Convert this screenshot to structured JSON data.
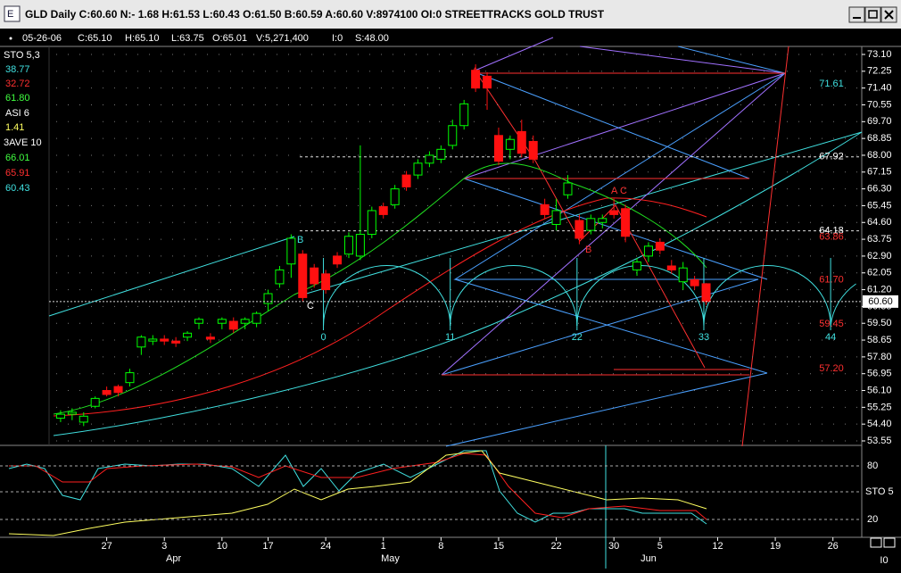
{
  "window": {
    "title": "GLD Daily C:60.60 N:- 1.68 H:61.53 L:60.43 O:61.50 B:60.59 A:60.60 V:8974100 OI:0 STREETTRACKS GOLD TRUST"
  },
  "info": [
    "05-26-06",
    "C:65.10",
    "H:65.10",
    "L:63.75",
    "O:65.01",
    "V:5,271,400",
    "I:0",
    "S:48.00"
  ],
  "sidebar": [
    {
      "text": "STO 5,3",
      "color": "#ffffff"
    },
    {
      "text": "38.77",
      "color": "#40e0e0"
    },
    {
      "text": "32.72",
      "color": "#ff3030"
    },
    {
      "text": "61.80",
      "color": "#40ff40"
    },
    {
      "text": "ASI 6",
      "color": "#ffffff"
    },
    {
      "text": "1.41",
      "color": "#ffff60"
    },
    {
      "text": "3AVE 10",
      "color": "#ffffff"
    },
    {
      "text": "66.01",
      "color": "#40ff40"
    },
    {
      "text": "65.91",
      "color": "#ff3030"
    },
    {
      "text": "60.43",
      "color": "#40e0e0"
    }
  ],
  "chart_data": {
    "type": "candlestick",
    "up_color": "#00ff00",
    "down_color": "#ff1010",
    "xlim": [
      -1,
      69.5
    ],
    "ylim": [
      53.55,
      73.1
    ],
    "yticks": [
      53.55,
      54.4,
      55.25,
      56.1,
      56.95,
      57.8,
      58.65,
      59.5,
      60.35,
      61.2,
      62.05,
      62.9,
      63.75,
      64.6,
      65.45,
      66.3,
      67.15,
      68,
      68.85,
      69.7,
      70.55,
      71.4,
      72.25,
      73.1
    ],
    "ytick_labels": [
      "53.55",
      "54.40",
      "55.25",
      "56.10",
      "56.95",
      "57.80",
      "58.65",
      "59.50",
      "60.35",
      "61.20",
      "62.05",
      "62.90",
      "63.75",
      "64.60",
      "65.45",
      "66.30",
      "67.15",
      "68.00",
      "68.85",
      "69.70",
      "70.55",
      "71.40",
      "72.25",
      "73.10"
    ],
    "xticks": [
      {
        "value": 4,
        "label": "27"
      },
      {
        "value": 9,
        "label": "3"
      },
      {
        "value": 14,
        "label": "10"
      },
      {
        "value": 18,
        "label": "17"
      },
      {
        "value": 23,
        "label": "24"
      },
      {
        "value": 28,
        "label": "1"
      },
      {
        "value": 33,
        "label": "8"
      },
      {
        "value": 38,
        "label": "15"
      },
      {
        "value": 43,
        "label": "22"
      },
      {
        "value": 48,
        "label": "30"
      },
      {
        "value": 52,
        "label": "5"
      },
      {
        "value": 57,
        "label": "12"
      },
      {
        "value": 62,
        "label": "19"
      },
      {
        "value": 67,
        "label": "26"
      }
    ],
    "months": [
      {
        "value": 9.8,
        "label": "Apr"
      },
      {
        "value": 28.6,
        "label": "May"
      },
      {
        "value": 51,
        "label": "Jun"
      }
    ],
    "grid": true,
    "open": [
      54.7,
      54.9,
      54.5,
      55.3,
      56.1,
      56.3,
      56.5,
      58.3,
      58.6,
      58.7,
      58.6,
      58.8,
      59.5,
      58.8,
      59.5,
      59.6,
      59.5,
      59.5,
      60.5,
      61.5,
      62.5,
      63.0,
      62.3,
      62.0,
      62.9,
      63.0,
      62.9,
      64.0,
      65.4,
      65.5,
      67.0,
      67.0,
      67.6,
      67.8,
      68.5,
      69.5,
      72.3,
      72.0,
      69.0,
      68.3,
      69.2,
      68.7,
      65.5,
      64.5,
      66.0,
      64.7,
      64.2,
      64.6,
      65.2,
      65.3,
      62.2,
      62.9,
      63.6,
      62.4,
      61.6,
      61.7,
      61.5
    ],
    "high": [
      55.1,
      55.2,
      55.0,
      55.8,
      56.3,
      56.4,
      57.2,
      58.9,
      58.9,
      58.9,
      58.8,
      59.1,
      59.8,
      59.0,
      59.8,
      59.8,
      59.8,
      60.1,
      61.2,
      62.4,
      64.0,
      63.2,
      62.5,
      62.2,
      63.1,
      64.1,
      68.5,
      65.4,
      65.6,
      66.5,
      67.2,
      67.8,
      68.2,
      68.5,
      69.8,
      70.8,
      72.6,
      72.2,
      69.4,
      69.0,
      69.8,
      69.0,
      65.8,
      65.8,
      67.0,
      65.0,
      65.0,
      65.0,
      65.8,
      65.5,
      62.8,
      63.6,
      63.8,
      62.7,
      62.6,
      61.9,
      61.53
    ],
    "low": [
      54.5,
      54.6,
      54.3,
      55.2,
      55.8,
      55.8,
      56.3,
      57.9,
      58.4,
      58.4,
      58.3,
      58.6,
      59.2,
      58.5,
      59.2,
      59.0,
      59.2,
      59.3,
      60.1,
      61.3,
      61.8,
      60.6,
      61.3,
      61.0,
      62.3,
      62.8,
      62.7,
      63.8,
      64.8,
      65.3,
      66.2,
      66.8,
      67.4,
      67.6,
      68.3,
      69.3,
      71.2,
      70.3,
      67.5,
      67.8,
      67.9,
      67.6,
      64.8,
      64.2,
      65.8,
      63.5,
      64.0,
      64.3,
      64.8,
      63.6,
      61.9,
      62.6,
      63.0,
      62.0,
      61.2,
      61.2,
      60.43
    ],
    "close": [
      54.9,
      55.0,
      54.8,
      55.7,
      55.9,
      56.0,
      57.0,
      58.8,
      58.7,
      58.6,
      58.5,
      59.0,
      59.7,
      58.7,
      59.7,
      59.2,
      59.7,
      60.0,
      61.0,
      62.2,
      63.8,
      60.8,
      61.5,
      61.2,
      62.5,
      63.9,
      64.0,
      65.2,
      65.0,
      66.3,
      66.4,
      67.6,
      68.0,
      68.3,
      69.5,
      70.6,
      71.4,
      71.4,
      67.7,
      68.8,
      68.1,
      67.8,
      65.0,
      65.2,
      66.6,
      63.8,
      64.8,
      64.8,
      65.0,
      63.9,
      62.6,
      63.4,
      63.2,
      62.2,
      62.3,
      61.4,
      60.6
    ],
    "levels": [
      {
        "value": 71.61,
        "color": "#40e0e0"
      },
      {
        "value": 67.92,
        "color": "#ffffff"
      },
      {
        "value": 64.18,
        "color": "#ffffff"
      },
      {
        "value": 63.86,
        "color": "#ff3030"
      },
      {
        "value": 61.7,
        "label": "61.70",
        "color": "#ff3030"
      },
      {
        "value": 59.45,
        "color": "#ff3030"
      },
      {
        "value": 57.2,
        "label": "57.20",
        "color": "#ff3030"
      }
    ],
    "last": {
      "value": 60.6,
      "label": "60.60"
    },
    "cycles": [
      0,
      11,
      22,
      33,
      44
    ],
    "letters": [
      "A",
      "B",
      "C",
      "B",
      "A",
      "C"
    ],
    "lower": {
      "ylim": [
        0,
        100
      ],
      "yticks": [
        80,
        20
      ],
      "label": "STO 5"
    }
  },
  "corner": "I0"
}
